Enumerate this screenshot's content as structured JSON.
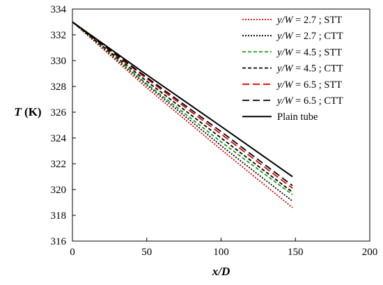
{
  "chart_data": {
    "type": "line",
    "title": "",
    "xlabel": "x/D",
    "ylabel": {
      "var": "T",
      "unit": " (K)"
    },
    "xlim": [
      0,
      200
    ],
    "ylim": [
      316,
      334
    ],
    "xticks": [
      0,
      50,
      100,
      150,
      200
    ],
    "yticks": [
      316,
      318,
      320,
      322,
      324,
      326,
      328,
      330,
      332,
      334
    ],
    "grid": false,
    "legend_position": "top-right",
    "series": [
      {
        "name_var": "y/W",
        "name_val": " = 2.7 ;  STT",
        "color": "#e00000",
        "dash": "dotted",
        "x": [
          0,
          50,
          100,
          148
        ],
        "y": [
          333,
          327.9,
          323.1,
          318.6
        ]
      },
      {
        "name_var": "y/W",
        "name_val": " = 2.7 ;  CTT",
        "color": "#000000",
        "dash": "dotted",
        "x": [
          0,
          50,
          100,
          148
        ],
        "y": [
          333,
          328.1,
          323.4,
          319.1
        ]
      },
      {
        "name_var": "y/W",
        "name_val": " = 4.5 ;  STT",
        "color": "#1a9a1a",
        "dash": "dashed-short",
        "x": [
          0,
          50,
          100,
          148
        ],
        "y": [
          333,
          328.2,
          323.7,
          319.6
        ]
      },
      {
        "name_var": "y/W",
        "name_val": " = 4.5 ;  CTT",
        "color": "#000000",
        "dash": "dashed-short",
        "x": [
          0,
          50,
          100,
          148
        ],
        "y": [
          333,
          328.4,
          324.0,
          319.8
        ]
      },
      {
        "name_var": "y/W",
        "name_val": " = 6.5 ;  STT",
        "color": "#e00000",
        "dash": "dashed-long",
        "x": [
          0,
          50,
          100,
          148
        ],
        "y": [
          333,
          328.6,
          324.3,
          320.1
        ]
      },
      {
        "name_var": "y/W",
        "name_val": " = 6.5 ;  CTT",
        "color": "#000000",
        "dash": "dashed-long",
        "x": [
          0,
          50,
          100,
          148
        ],
        "y": [
          333,
          328.7,
          324.5,
          320.3
        ]
      },
      {
        "name": "Plain tube",
        "color": "#000000",
        "dash": "solid",
        "x": [
          0,
          50,
          100,
          148
        ],
        "y": [
          333,
          328.9,
          324.9,
          321.0
        ]
      }
    ]
  }
}
